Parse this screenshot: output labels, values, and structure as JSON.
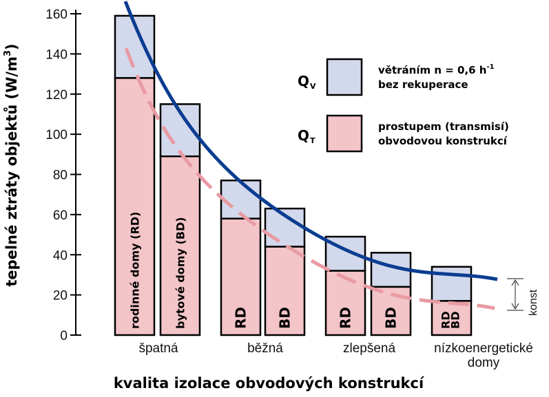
{
  "chart_data": {
    "type": "bar",
    "stacked": true,
    "ylabel": "tepelné ztráty objektů (W/m",
    "ylabel_sup": "3",
    "ylabel_close": ")",
    "xlabel": "kvalita izolace obvodových konstrukcí",
    "ylim": [
      0,
      160
    ],
    "y_ticks": [
      "0",
      "20",
      "40",
      "60",
      "80",
      "100",
      "120",
      "140",
      "160"
    ],
    "groups": [
      {
        "label_lines": [
          "špatná"
        ]
      },
      {
        "label_lines": [
          "běžná"
        ]
      },
      {
        "label_lines": [
          "zlepšená"
        ]
      },
      {
        "label_lines": [
          "nízkoenergetické",
          "domy"
        ]
      }
    ],
    "bars": [
      {
        "group": 0,
        "label": "rodinné domy (RD)",
        "q_t": 128,
        "total": 159
      },
      {
        "group": 0,
        "label": "bytové domy (BD)",
        "q_t": 89,
        "total": 115
      },
      {
        "group": 1,
        "label": "RD",
        "q_t": 58,
        "total": 77
      },
      {
        "group": 1,
        "label": "BD",
        "q_t": 44,
        "total": 63
      },
      {
        "group": 2,
        "label": "RD",
        "q_t": 32,
        "total": 49
      },
      {
        "group": 2,
        "label": "BD",
        "q_t": 24,
        "total": 41
      },
      {
        "group": 3,
        "label": "RD\nBD",
        "q_t": 17,
        "total": 34
      }
    ],
    "series": [
      {
        "symbol": "Q",
        "subscript": "V",
        "text_lines": [
          "větráním n = 0,6 h",
          "bez rekuperace"
        ],
        "text_sup": "-1",
        "color": "#d3d9ec"
      },
      {
        "symbol": "Q",
        "subscript": "T",
        "text_lines": [
          "prostupem (transmisí)",
          "obvodovou konstrukcí"
        ],
        "color": "#f3c4c8"
      }
    ],
    "curves": [
      {
        "style": "solid",
        "color": "#0b3d91"
      },
      {
        "style": "dashed",
        "color": "#e89aa2"
      }
    ],
    "annotation": "konst"
  }
}
